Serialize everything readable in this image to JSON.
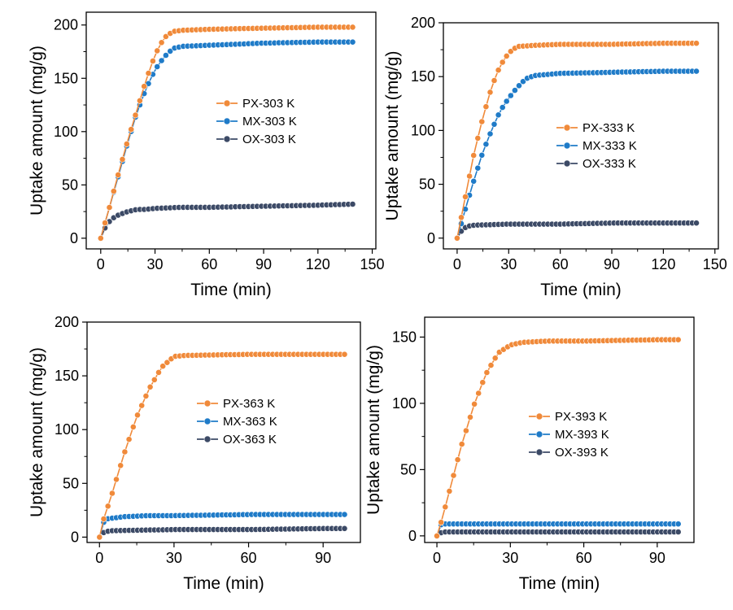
{
  "colors": {
    "PX": "#f08a3a",
    "MX": "#1f7bc8",
    "OX": "#3c4a66"
  },
  "chart_data": [
    {
      "type": "line",
      "xlabel": "Time (min)",
      "ylabel": "Uptake amount (mg/g)",
      "xlim": [
        -8,
        152
      ],
      "ylim": [
        -10,
        212
      ],
      "xticks": [
        "0",
        "30",
        "60",
        "90",
        "120",
        "150"
      ],
      "yticks": [
        "0",
        "50",
        "100",
        "150",
        "200"
      ],
      "legend_position": "right-middle",
      "series": [
        {
          "name": "PX-303 K",
          "color_key": "PX",
          "points": [
            [
              0,
              0
            ],
            [
              5,
              30
            ],
            [
              10,
              62
            ],
            [
              15,
              92
            ],
            [
              20,
              120
            ],
            [
              25,
              148
            ],
            [
              30,
              172
            ],
            [
              35,
              188
            ],
            [
              40,
              194
            ],
            [
              45,
              195
            ],
            [
              60,
              196
            ],
            [
              90,
              197
            ],
            [
              120,
              198
            ],
            [
              140,
              198
            ]
          ]
        },
        {
          "name": "MX-303 K",
          "color_key": "MX",
          "points": [
            [
              0,
              0
            ],
            [
              5,
              30
            ],
            [
              10,
              60
            ],
            [
              15,
              90
            ],
            [
              20,
              118
            ],
            [
              25,
              140
            ],
            [
              30,
              158
            ],
            [
              35,
              170
            ],
            [
              40,
              178
            ],
            [
              45,
              180
            ],
            [
              60,
              181
            ],
            [
              90,
              183
            ],
            [
              120,
              184
            ],
            [
              140,
              184
            ]
          ]
        },
        {
          "name": "OX-303 K",
          "color_key": "OX",
          "points": [
            [
              0,
              0
            ],
            [
              3,
              12
            ],
            [
              6,
              18
            ],
            [
              10,
              22
            ],
            [
              15,
              25
            ],
            [
              20,
              27
            ],
            [
              25,
              27
            ],
            [
              30,
              28
            ],
            [
              45,
              29
            ],
            [
              60,
              29
            ],
            [
              90,
              30
            ],
            [
              120,
              31
            ],
            [
              140,
              32
            ]
          ]
        }
      ]
    },
    {
      "type": "line",
      "xlabel": "Time (min)",
      "ylabel": "Uptake amount (mg/g)",
      "xlim": [
        -8,
        152
      ],
      "ylim": [
        -10,
        200
      ],
      "xticks": [
        "0",
        "30",
        "60",
        "90",
        "120",
        "150"
      ],
      "yticks": [
        "0",
        "50",
        "100",
        "150",
        "200"
      ],
      "legend_position": "right-middle",
      "series": [
        {
          "name": "PX-333 K",
          "color_key": "PX",
          "points": [
            [
              0,
              0
            ],
            [
              5,
              40
            ],
            [
              10,
              80
            ],
            [
              15,
              112
            ],
            [
              20,
              140
            ],
            [
              25,
              160
            ],
            [
              30,
              172
            ],
            [
              35,
              178
            ],
            [
              45,
              179
            ],
            [
              60,
              180
            ],
            [
              90,
              180
            ],
            [
              120,
              181
            ],
            [
              140,
              181
            ]
          ]
        },
        {
          "name": "MX-333 K",
          "color_key": "MX",
          "points": [
            [
              0,
              0
            ],
            [
              5,
              28
            ],
            [
              10,
              55
            ],
            [
              15,
              80
            ],
            [
              20,
              100
            ],
            [
              25,
              118
            ],
            [
              30,
              130
            ],
            [
              35,
              140
            ],
            [
              40,
              148
            ],
            [
              45,
              151
            ],
            [
              60,
              153
            ],
            [
              90,
              154
            ],
            [
              120,
              155
            ],
            [
              140,
              155
            ]
          ]
        },
        {
          "name": "OX-333 K",
          "color_key": "OX",
          "points": [
            [
              0,
              0
            ],
            [
              3,
              8
            ],
            [
              6,
              11
            ],
            [
              10,
              12
            ],
            [
              30,
              13
            ],
            [
              60,
              13
            ],
            [
              90,
              14
            ],
            [
              120,
              14
            ],
            [
              140,
              14
            ]
          ]
        }
      ]
    },
    {
      "type": "line",
      "xlabel": "Time (min)",
      "ylabel": "Uptake amount (mg/g)",
      "xlim": [
        -5,
        105
      ],
      "ylim": [
        -5,
        200
      ],
      "xticks": [
        "0",
        "30",
        "60",
        "90"
      ],
      "yticks": [
        "0",
        "50",
        "100",
        "150",
        "200"
      ],
      "legend_position": "right-middle",
      "series": [
        {
          "name": "PX-363 K",
          "color_key": "PX",
          "points": [
            [
              0,
              0
            ],
            [
              1,
              12
            ],
            [
              5,
              40
            ],
            [
              10,
              78
            ],
            [
              15,
              112
            ],
            [
              20,
              138
            ],
            [
              25,
              158
            ],
            [
              30,
              168
            ],
            [
              35,
              169
            ],
            [
              60,
              170
            ],
            [
              90,
              170
            ],
            [
              100,
              170
            ]
          ]
        },
        {
          "name": "MX-363 K",
          "color_key": "MX",
          "points": [
            [
              0,
              0
            ],
            [
              1,
              12
            ],
            [
              3,
              17
            ],
            [
              10,
              19
            ],
            [
              20,
              20
            ],
            [
              30,
              20
            ],
            [
              60,
              21
            ],
            [
              90,
              21
            ],
            [
              100,
              21
            ]
          ]
        },
        {
          "name": "OX-363 K",
          "color_key": "OX",
          "points": [
            [
              0,
              0
            ],
            [
              2,
              5
            ],
            [
              5,
              6
            ],
            [
              30,
              7
            ],
            [
              60,
              7
            ],
            [
              90,
              8
            ],
            [
              100,
              8
            ]
          ]
        }
      ]
    },
    {
      "type": "line",
      "xlabel": "Time (min)",
      "ylabel": "Uptake amount (mg/g)",
      "xlim": [
        -5,
        105
      ],
      "ylim": [
        -5,
        165
      ],
      "xticks": [
        "0",
        "30",
        "60",
        "90"
      ],
      "yticks": [
        "0",
        "50",
        "100",
        "150"
      ],
      "legend_position": "right-middle",
      "series": [
        {
          "name": "PX-393 K",
          "color_key": "PX",
          "points": [
            [
              0,
              0
            ],
            [
              2,
              12
            ],
            [
              5,
              33
            ],
            [
              10,
              68
            ],
            [
              15,
              98
            ],
            [
              20,
              122
            ],
            [
              25,
              138
            ],
            [
              30,
              144
            ],
            [
              35,
              146
            ],
            [
              45,
              147
            ],
            [
              60,
              147
            ],
            [
              90,
              148
            ],
            [
              100,
              148
            ]
          ]
        },
        {
          "name": "MX-393 K",
          "color_key": "MX",
          "points": [
            [
              0,
              0
            ],
            [
              1,
              8
            ],
            [
              3,
              9
            ],
            [
              30,
              9
            ],
            [
              60,
              9
            ],
            [
              100,
              9
            ]
          ]
        },
        {
          "name": "OX-393 K",
          "color_key": "OX",
          "points": [
            [
              0,
              0
            ],
            [
              1,
              2
            ],
            [
              3,
              3
            ],
            [
              30,
              3
            ],
            [
              60,
              3
            ],
            [
              100,
              3
            ]
          ]
        }
      ]
    }
  ]
}
